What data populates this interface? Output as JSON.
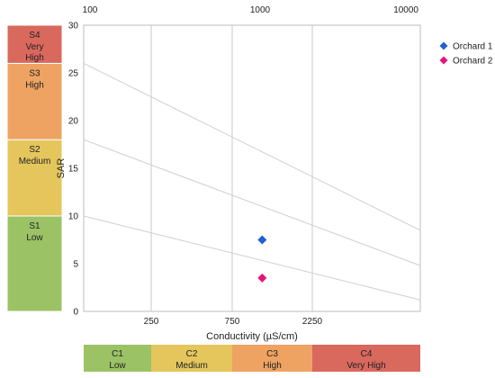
{
  "chart_data": {
    "type": "scatter",
    "title": "",
    "xlabel": "Conductivity (µS/cm)",
    "ylabel": "SAR",
    "ylim": [
      0,
      30
    ],
    "y_ticks": [
      "0",
      "5",
      "10",
      "15",
      "20",
      "25",
      "30"
    ],
    "x_bottom_ticks": [
      "250",
      "750",
      "2250"
    ],
    "x_top_ticks": [
      "100",
      "1000",
      "10000"
    ],
    "grid": true,
    "legend_position": "top-right",
    "series": [
      {
        "name": "Orchard 1",
        "color": "#1f5fd1",
        "marker": "diamond",
        "points": [
          {
            "x": 1150,
            "y": 7.5
          }
        ]
      },
      {
        "name": "Orchard 2",
        "color": "#e8137a",
        "marker": "diamond",
        "points": [
          {
            "x": 1150,
            "y": 3.5
          }
        ]
      }
    ],
    "salinity_classes": [
      {
        "code": "C1",
        "label": "Low",
        "color": "#9bc265"
      },
      {
        "code": "C2",
        "label": "Medium",
        "color": "#e4c65d"
      },
      {
        "code": "C3",
        "label": "High",
        "color": "#eea362"
      },
      {
        "code": "C4",
        "label": "Very High",
        "color": "#d9685d"
      }
    ],
    "sodium_classes": [
      {
        "code": "S1",
        "label": "Low",
        "color": "#9bc265",
        "upper": 10
      },
      {
        "code": "S2",
        "label": "Medium",
        "color": "#e4c65d",
        "upper": 18
      },
      {
        "code": "S3",
        "label": "High",
        "color": "#eea362",
        "upper": 26
      },
      {
        "code": "S4",
        "label": "Very High",
        "color": "#d9685d",
        "upper": 30
      }
    ],
    "class_boundary_lines": [
      {
        "sar_left": 26,
        "sar_right": 8.5
      },
      {
        "sar_left": 18,
        "sar_right": 4.8
      },
      {
        "sar_left": 10,
        "sar_right": 1.2
      }
    ]
  }
}
